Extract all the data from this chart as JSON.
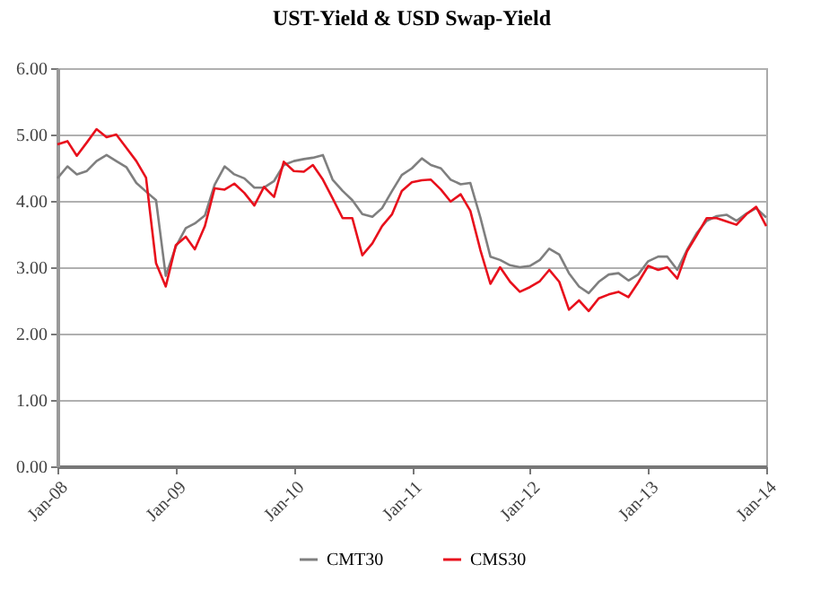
{
  "chart_data": {
    "type": "line",
    "title": "UST-Yield & USD Swap-Yield",
    "x": [
      "2008-01",
      "2008-02",
      "2008-03",
      "2008-04",
      "2008-05",
      "2008-06",
      "2008-07",
      "2008-08",
      "2008-09",
      "2008-10",
      "2008-11",
      "2008-12",
      "2009-01",
      "2009-02",
      "2009-03",
      "2009-04",
      "2009-05",
      "2009-06",
      "2009-07",
      "2009-08",
      "2009-09",
      "2009-10",
      "2009-11",
      "2009-12",
      "2010-01",
      "2010-02",
      "2010-03",
      "2010-04",
      "2010-05",
      "2010-06",
      "2010-07",
      "2010-08",
      "2010-09",
      "2010-10",
      "2010-11",
      "2010-12",
      "2011-01",
      "2011-02",
      "2011-03",
      "2011-04",
      "2011-05",
      "2011-06",
      "2011-07",
      "2011-08",
      "2011-09",
      "2011-10",
      "2011-11",
      "2011-12",
      "2012-01",
      "2012-02",
      "2012-03",
      "2012-04",
      "2012-05",
      "2012-06",
      "2012-07",
      "2012-08",
      "2012-09",
      "2012-10",
      "2012-11",
      "2012-12",
      "2013-01",
      "2013-02",
      "2013-03",
      "2013-04",
      "2013-05",
      "2013-06",
      "2013-07",
      "2013-08",
      "2013-09",
      "2013-10",
      "2013-11",
      "2013-12",
      "2014-01"
    ],
    "series": [
      {
        "name": "CMT30",
        "color": "#7f7f7f",
        "values": [
          4.34,
          4.52,
          4.4,
          4.45,
          4.6,
          4.69,
          4.6,
          4.51,
          4.27,
          4.14,
          4.01,
          2.87,
          3.31,
          3.59,
          3.66,
          3.78,
          4.24,
          4.52,
          4.4,
          4.34,
          4.2,
          4.2,
          4.3,
          4.54,
          4.6,
          4.63,
          4.65,
          4.69,
          4.32,
          4.15,
          4.01,
          3.8,
          3.76,
          3.89,
          4.15,
          4.39,
          4.49,
          4.64,
          4.54,
          4.49,
          4.32,
          4.25,
          4.27,
          3.75,
          3.16,
          3.11,
          3.03,
          3.0,
          3.02,
          3.11,
          3.28,
          3.19,
          2.91,
          2.71,
          2.61,
          2.78,
          2.89,
          2.91,
          2.8,
          2.89,
          3.09,
          3.16,
          3.16,
          2.96,
          3.26,
          3.52,
          3.7,
          3.77,
          3.79,
          3.7,
          3.81,
          3.89,
          3.75
        ]
      },
      {
        "name": "CMS30",
        "color": "#e8101c",
        "values": [
          4.85,
          4.9,
          4.68,
          4.88,
          5.08,
          4.96,
          5.0,
          4.8,
          4.6,
          4.35,
          3.06,
          2.71,
          3.33,
          3.46,
          3.27,
          3.62,
          4.19,
          4.17,
          4.26,
          4.12,
          3.93,
          4.21,
          4.06,
          4.59,
          4.45,
          4.44,
          4.54,
          4.32,
          4.04,
          3.74,
          3.74,
          3.18,
          3.36,
          3.62,
          3.8,
          4.15,
          4.28,
          4.31,
          4.32,
          4.17,
          3.99,
          4.1,
          3.85,
          3.26,
          2.75,
          3.0,
          2.78,
          2.63,
          2.7,
          2.79,
          2.96,
          2.78,
          2.36,
          2.5,
          2.34,
          2.53,
          2.59,
          2.63,
          2.55,
          2.77,
          3.02,
          2.96,
          3.0,
          2.83,
          3.24,
          3.49,
          3.74,
          3.74,
          3.69,
          3.64,
          3.8,
          3.91,
          3.62
        ]
      }
    ],
    "xlim": [
      "2008-01",
      "2014-01"
    ],
    "xticks": [
      {
        "value": "2008-01",
        "label": "Jan-08"
      },
      {
        "value": "2009-01",
        "label": "Jan-09"
      },
      {
        "value": "2010-01",
        "label": "Jan-10"
      },
      {
        "value": "2011-01",
        "label": "Jan-11"
      },
      {
        "value": "2012-01",
        "label": "Jan-12"
      },
      {
        "value": "2013-01",
        "label": "Jan-13"
      },
      {
        "value": "2014-01",
        "label": "Jan-14"
      }
    ],
    "ylim": [
      0,
      6
    ],
    "yticks": [
      {
        "value": 0,
        "label": "0.00"
      },
      {
        "value": 1,
        "label": "1.00"
      },
      {
        "value": 2,
        "label": "2.00"
      },
      {
        "value": 3,
        "label": "3.00"
      },
      {
        "value": 4,
        "label": "4.00"
      },
      {
        "value": 5,
        "label": "5.00"
      },
      {
        "value": 6,
        "label": "6.00"
      }
    ],
    "grid": "y",
    "legend": "bottom",
    "marker": "none",
    "line_style": "solid"
  }
}
